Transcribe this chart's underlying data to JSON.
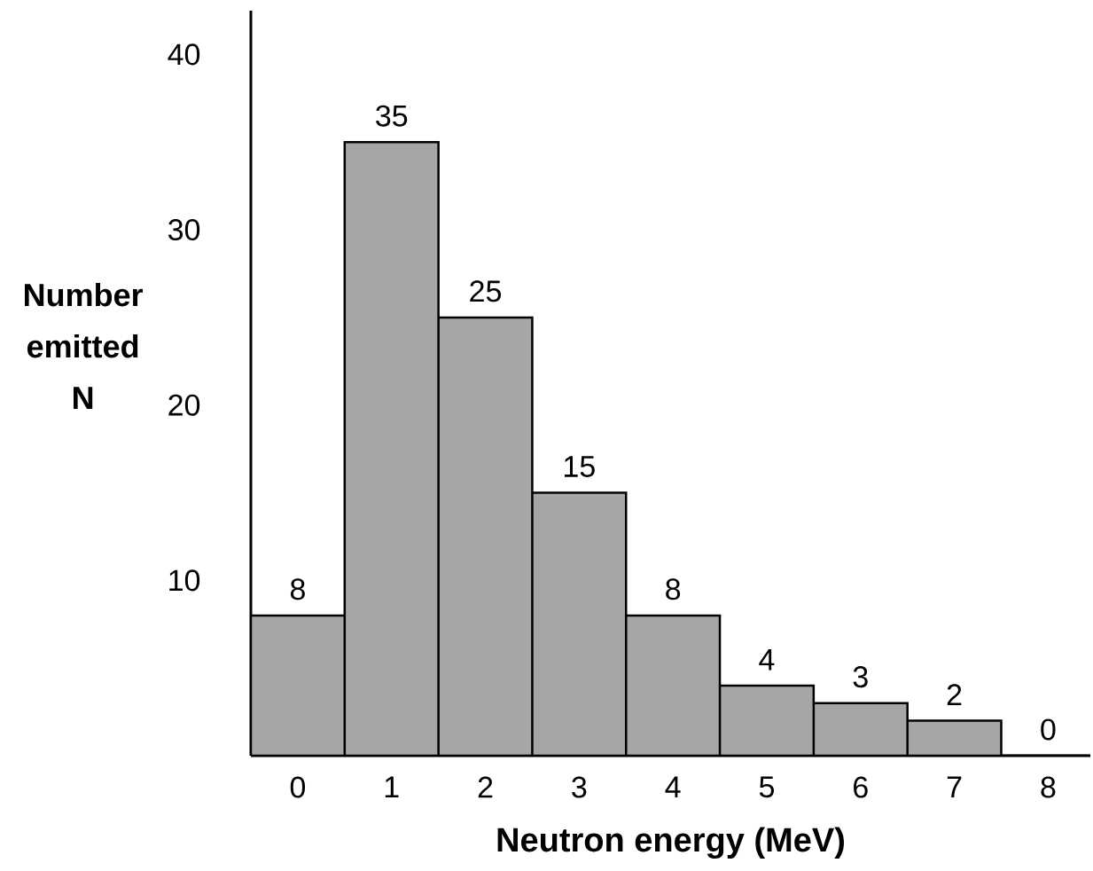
{
  "chart_data": {
    "type": "bar",
    "xlabel": "Neutron energy (MeV)",
    "ylabel": "Number emitted N",
    "categories": [
      "0",
      "1",
      "2",
      "3",
      "4",
      "5",
      "6",
      "7",
      "8"
    ],
    "values": [
      8,
      35,
      25,
      15,
      8,
      4,
      3,
      2,
      0
    ],
    "color": "#a6a6a6",
    "data_labels": true,
    "ylim": [
      0,
      42.5
    ],
    "yticks": [
      10,
      20,
      30,
      40
    ]
  }
}
